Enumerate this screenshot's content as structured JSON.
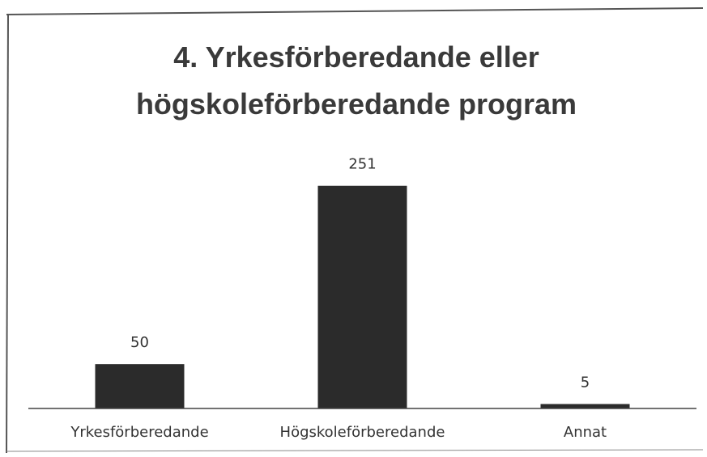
{
  "chart_data": {
    "type": "bar",
    "title": "4. Yrkesförberedande eller högskoleförberedande program",
    "categories": [
      "Yrkesförberedande",
      "Högskoleförberedande",
      "Annat"
    ],
    "values": [
      50,
      251,
      5
    ],
    "color": "#2b2b2b",
    "ylim": [
      0,
      300
    ]
  }
}
